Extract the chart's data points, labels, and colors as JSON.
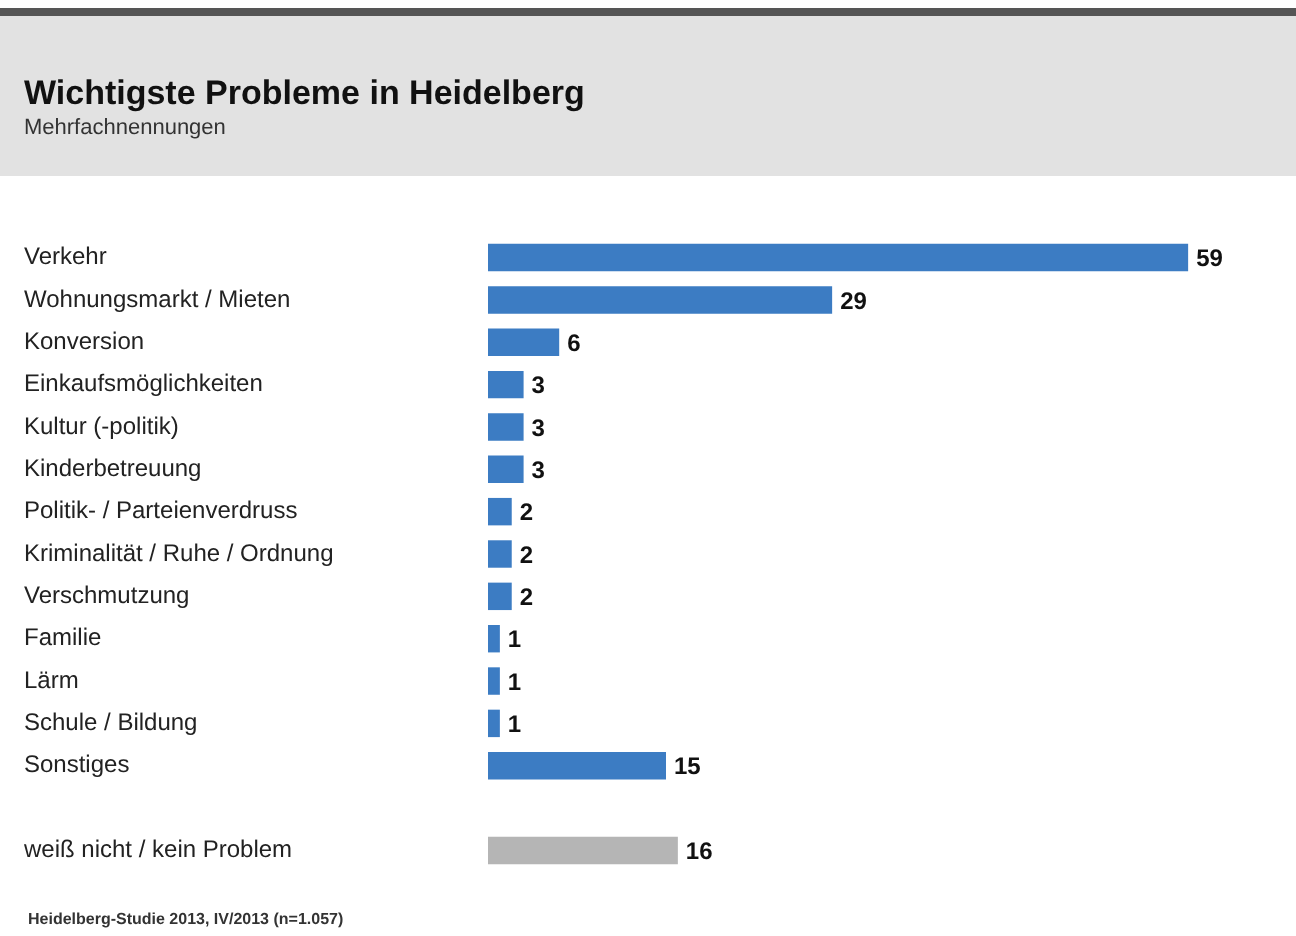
{
  "chart_data": {
    "type": "bar",
    "orientation": "horizontal",
    "title": "Wichtigste Probleme in Heidelberg",
    "subtitle": "Mehrfachnennungen",
    "categories": [
      "Verkehr",
      "Wohnungsmarkt / Mieten",
      "Konversion",
      "Einkaufsmöglichkeiten",
      "Kultur (-politik)",
      "Kinderbetreuung",
      "Politik- / Parteienverdruss",
      "Kriminalität / Ruhe / Ordnung",
      "Verschmutzung",
      "Familie",
      "Lärm",
      "Schule / Bildung",
      "Sonstiges",
      null,
      "weiß nicht / kein Problem"
    ],
    "values": [
      59,
      29,
      6,
      3,
      3,
      3,
      2,
      2,
      2,
      1,
      1,
      1,
      15,
      null,
      16
    ],
    "colors": [
      "#3c7cc3",
      "#3c7cc3",
      "#3c7cc3",
      "#3c7cc3",
      "#3c7cc3",
      "#3c7cc3",
      "#3c7cc3",
      "#3c7cc3",
      "#3c7cc3",
      "#3c7cc3",
      "#3c7cc3",
      "#3c7cc3",
      "#3c7cc3",
      "#3c7cc3",
      "#b5b5b5"
    ],
    "data_labels": true,
    "legend": false,
    "tick_labels": "y",
    "annotations": [
      "Heidelberg-Studie 2013, IV/2013 (n=1.057)"
    ]
  }
}
